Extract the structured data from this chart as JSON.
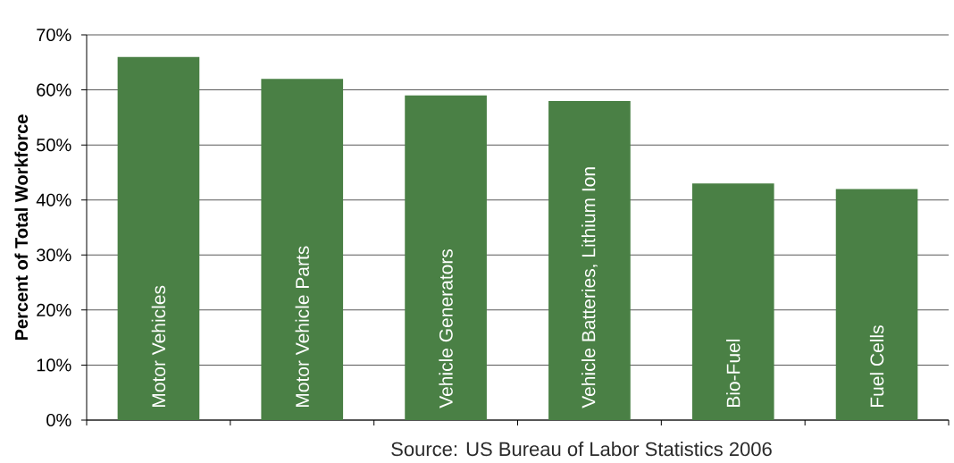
{
  "chart_data": {
    "type": "bar",
    "ylabel": "Percent of Total Workforce",
    "categories": [
      "Motor Vehicles",
      "Motor Vehicle Parts",
      "Vehicle Generators",
      "Vehicle Batteries, Lithium Ion",
      "Bio-Fuel",
      "Fuel Cells"
    ],
    "values": [
      66,
      62,
      59,
      58,
      43,
      42
    ],
    "color": "#4a8045",
    "ylim": [
      0,
      70
    ],
    "yticks": [
      {
        "value": 0,
        "label": "0%"
      },
      {
        "value": 10,
        "label": "10%"
      },
      {
        "value": 20,
        "label": "20%"
      },
      {
        "value": 30,
        "label": "30%"
      },
      {
        "value": 40,
        "label": "40%"
      },
      {
        "value": 50,
        "label": "50%"
      },
      {
        "value": 60,
        "label": "60%"
      },
      {
        "value": 70,
        "label": "70%"
      }
    ],
    "grid": "y",
    "annotations": [
      "Source: US Bureau of Labor Statistics 2006"
    ]
  }
}
